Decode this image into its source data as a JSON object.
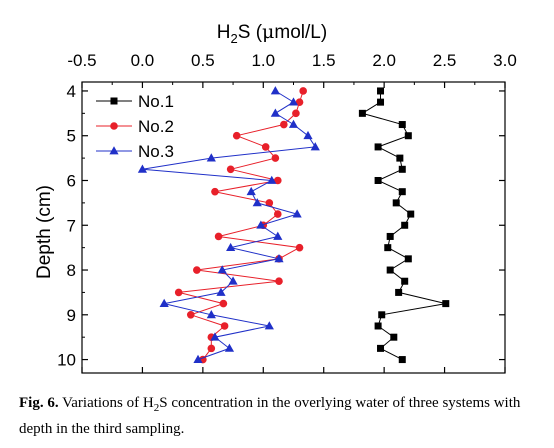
{
  "figure": {
    "caption_label": "Fig. 6.",
    "caption_text_pre": " Variations of H",
    "caption_sub": "2",
    "caption_text_post": "S concentration in the overlying water of three systems with depth in the third sampling."
  },
  "chart_data": {
    "type": "line",
    "orientation": "depth-profile",
    "title": "",
    "xlabel": "H2S (μmol/L)",
    "xlabel_parts": {
      "a": "H",
      "sub": "2",
      "b": "S (",
      "mu": "μ",
      "c": "mol/L)"
    },
    "ylabel": "Depth (cm)",
    "x_axis_position": "top",
    "xlim": [
      -0.5,
      3.0
    ],
    "ylim": [
      10.3,
      3.8
    ],
    "y_inverted": true,
    "xticks": [
      -0.5,
      0.0,
      0.5,
      1.0,
      1.5,
      2.0,
      2.5,
      3.0
    ],
    "xtick_labels": [
      "-0.5",
      "0.0",
      "0.5",
      "1.0",
      "1.5",
      "2.0",
      "2.5",
      "3.0"
    ],
    "yticks": [
      4,
      5,
      6,
      7,
      8,
      9,
      10
    ],
    "ytick_labels": [
      "4",
      "5",
      "6",
      "7",
      "8",
      "9",
      "10"
    ],
    "grid": false,
    "legend_position": "top-left",
    "series": [
      {
        "name": "No.1",
        "color": "#000000",
        "marker": "square",
        "points": [
          [
            1.97,
            4.0
          ],
          [
            1.97,
            4.25
          ],
          [
            1.82,
            4.5
          ],
          [
            2.15,
            4.75
          ],
          [
            2.2,
            5.0
          ],
          [
            1.95,
            5.25
          ],
          [
            2.13,
            5.5
          ],
          [
            2.15,
            5.75
          ],
          [
            1.95,
            6.0
          ],
          [
            2.15,
            6.25
          ],
          [
            2.1,
            6.5
          ],
          [
            2.22,
            6.75
          ],
          [
            2.17,
            7.0
          ],
          [
            2.05,
            7.25
          ],
          [
            2.03,
            7.5
          ],
          [
            2.2,
            7.75
          ],
          [
            2.05,
            8.0
          ],
          [
            2.17,
            8.25
          ],
          [
            2.12,
            8.5
          ],
          [
            2.51,
            8.75
          ],
          [
            1.98,
            9.0
          ],
          [
            1.95,
            9.25
          ],
          [
            2.08,
            9.5
          ],
          [
            1.97,
            9.75
          ],
          [
            2.15,
            10.0
          ]
        ]
      },
      {
        "name": "No.2",
        "color": "#e8202a",
        "marker": "circle",
        "points": [
          [
            1.33,
            4.0
          ],
          [
            1.3,
            4.25
          ],
          [
            1.27,
            4.5
          ],
          [
            1.17,
            4.75
          ],
          [
            0.78,
            5.0
          ],
          [
            1.02,
            5.25
          ],
          [
            1.1,
            5.5
          ],
          [
            0.73,
            5.75
          ],
          [
            1.12,
            6.0
          ],
          [
            0.6,
            6.25
          ],
          [
            1.05,
            6.5
          ],
          [
            1.12,
            6.75
          ],
          [
            1.0,
            7.0
          ],
          [
            0.63,
            7.25
          ],
          [
            1.3,
            7.5
          ],
          [
            1.13,
            7.75
          ],
          [
            0.45,
            8.0
          ],
          [
            1.13,
            8.25
          ],
          [
            0.3,
            8.5
          ],
          [
            0.67,
            8.75
          ],
          [
            0.4,
            9.0
          ],
          [
            0.68,
            9.25
          ],
          [
            0.57,
            9.5
          ],
          [
            0.57,
            9.75
          ],
          [
            0.5,
            10.0
          ]
        ]
      },
      {
        "name": "No.3",
        "color": "#2030c8",
        "marker": "triangle",
        "points": [
          [
            1.1,
            4.0
          ],
          [
            1.25,
            4.25
          ],
          [
            1.1,
            4.5
          ],
          [
            1.25,
            4.75
          ],
          [
            1.37,
            5.0
          ],
          [
            1.43,
            5.25
          ],
          [
            0.57,
            5.5
          ],
          [
            0.0,
            5.75
          ],
          [
            1.07,
            6.0
          ],
          [
            0.9,
            6.25
          ],
          [
            0.95,
            6.5
          ],
          [
            1.28,
            6.75
          ],
          [
            0.98,
            7.0
          ],
          [
            1.12,
            7.25
          ],
          [
            0.73,
            7.5
          ],
          [
            1.13,
            7.75
          ],
          [
            0.66,
            8.0
          ],
          [
            0.75,
            8.25
          ],
          [
            0.65,
            8.5
          ],
          [
            0.18,
            8.75
          ],
          [
            0.57,
            9.0
          ],
          [
            1.05,
            9.25
          ],
          [
            0.6,
            9.5
          ],
          [
            0.72,
            9.75
          ],
          [
            0.46,
            10.0
          ]
        ]
      }
    ]
  }
}
